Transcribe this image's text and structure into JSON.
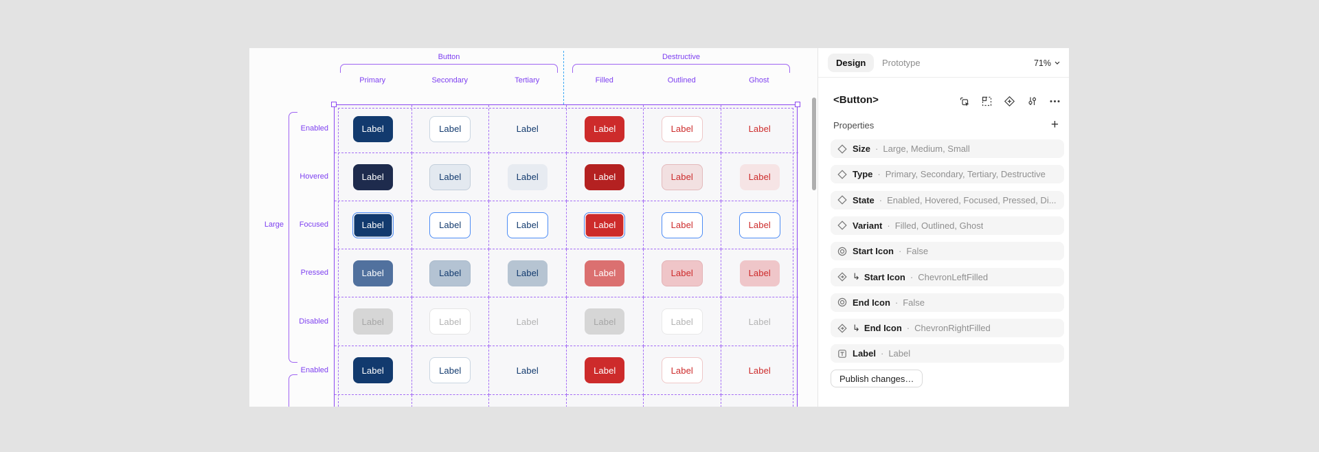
{
  "canvas": {
    "groups": [
      {
        "label": "Button",
        "columns": [
          {
            "label": "Primary",
            "key": "primary"
          },
          {
            "label": "Secondary",
            "key": "secondary"
          },
          {
            "label": "Tertiary",
            "key": "tertiary"
          }
        ]
      },
      {
        "label": "Destructive",
        "columns": [
          {
            "label": "Filled",
            "key": "destructive-filled"
          },
          {
            "label": "Outlined",
            "key": "destructive-outlined"
          },
          {
            "label": "Ghost",
            "key": "destructive-ghost"
          }
        ]
      }
    ],
    "size_group_label": "Large",
    "rows": [
      {
        "label": "Enabled",
        "state": "enabled"
      },
      {
        "label": "Hovered",
        "state": "hovered"
      },
      {
        "label": "Focused",
        "state": "focused"
      },
      {
        "label": "Pressed",
        "state": "pressed"
      },
      {
        "label": "Disabled",
        "state": "disabled"
      },
      {
        "label": "Enabled",
        "state": "enabled"
      }
    ],
    "button_label": "Label",
    "styles": {
      "primary": {
        "enabled": {
          "bg": "#123A6E",
          "fg": "#FFFFFF"
        },
        "hovered": {
          "bg": "#1E2B4D",
          "fg": "#FFFFFF"
        },
        "focused": {
          "bg": "#123A6E",
          "fg": "#FFFFFF",
          "ring": "#4B8BF5"
        },
        "pressed": {
          "bg": "#51719E",
          "fg": "#FFFFFF"
        },
        "disabled": {
          "bg": "#D6D6D6",
          "fg": "#A6A6A6"
        }
      },
      "secondary": {
        "enabled": {
          "bg": "#FFFFFF",
          "fg": "#123A6E",
          "border": "#C9D5E1"
        },
        "hovered": {
          "bg": "#E3E9F0",
          "fg": "#123A6E",
          "border": "#C2CEDA"
        },
        "focused": {
          "bg": "#FFFFFF",
          "fg": "#123A6E",
          "ring": "#4B8BF5"
        },
        "pressed": {
          "bg": "#B4C3D3",
          "fg": "#123A6E",
          "border": "#A9BACB"
        },
        "disabled": {
          "bg": "#FFFFFF",
          "fg": "#B3B3B3",
          "border": "#E4E4E4"
        }
      },
      "tertiary": {
        "enabled": {
          "fg": "#123A6E"
        },
        "hovered": {
          "bg": "#E7EBF1",
          "fg": "#123A6E"
        },
        "focused": {
          "bg": "#FFFFFF",
          "fg": "#123A6E",
          "ring": "#4B8BF5"
        },
        "pressed": {
          "bg": "#B6C4D2",
          "fg": "#123A6E"
        },
        "disabled": {
          "fg": "#B3B3B3"
        }
      },
      "destructive-filled": {
        "enabled": {
          "bg": "#CD2B2B",
          "fg": "#FFFFFF"
        },
        "hovered": {
          "bg": "#B42121",
          "fg": "#FFFFFF"
        },
        "focused": {
          "bg": "#CD2B2B",
          "fg": "#FFFFFF",
          "ring": "#4B8BF5"
        },
        "pressed": {
          "bg": "#DB7070",
          "fg": "#FFFFFF"
        },
        "disabled": {
          "bg": "#D6D6D6",
          "fg": "#A6A6A6"
        }
      },
      "destructive-outlined": {
        "enabled": {
          "bg": "#FFFFFF",
          "fg": "#CD2B2B",
          "border": "#EFC7C7"
        },
        "hovered": {
          "bg": "#F2E0E1",
          "fg": "#CD2B2B",
          "border": "#E3B9BB"
        },
        "focused": {
          "bg": "#FFFFFF",
          "fg": "#CD2B2B",
          "ring": "#4B8BF5"
        },
        "pressed": {
          "bg": "#EFC5C8",
          "fg": "#CD2B2B",
          "border": "#E3B2B6"
        },
        "disabled": {
          "bg": "#FFFFFF",
          "fg": "#B3B3B3",
          "border": "#E8E8E8"
        }
      },
      "destructive-ghost": {
        "enabled": {
          "fg": "#CD2B2B"
        },
        "hovered": {
          "bg": "#F6E4E5",
          "fg": "#CD2B2B"
        },
        "focused": {
          "bg": "#FFFFFF",
          "fg": "#CD2B2B",
          "ring": "#4B8BF5"
        },
        "pressed": {
          "bg": "#EFC6C9",
          "fg": "#CD2B2B"
        },
        "disabled": {
          "fg": "#B3B3B3"
        }
      }
    },
    "colors": {
      "selection_purple": "#8B46F0",
      "dashed_purple": "#A46CF5",
      "label_purple": "#7D3FF0",
      "guide_blue": "#3BA7F5"
    }
  },
  "panel": {
    "tabs": [
      {
        "label": "Design",
        "active": true
      },
      {
        "label": "Prototype",
        "active": false
      }
    ],
    "zoom": "71%",
    "title": "<Button>",
    "header_icons": [
      "multi-select-icon",
      "variants-grid-icon",
      "add-variant-icon",
      "adjust-icon",
      "more-icon"
    ],
    "section_title": "Properties",
    "properties": [
      {
        "icon": "variant-diamond-icon",
        "nested": false,
        "name": "Size",
        "value": "Large, Medium, Small"
      },
      {
        "icon": "variant-diamond-icon",
        "nested": false,
        "name": "Type",
        "value": "Primary, Secondary, Tertiary, Destructive"
      },
      {
        "icon": "variant-diamond-icon",
        "nested": false,
        "name": "State",
        "value": "Enabled, Hovered, Focused, Pressed, Di..."
      },
      {
        "icon": "variant-diamond-icon",
        "nested": false,
        "name": "Variant",
        "value": "Filled, Outlined, Ghost"
      },
      {
        "icon": "boolean-icon",
        "nested": false,
        "name": "Start Icon",
        "value": "False"
      },
      {
        "icon": "instance-swap-icon",
        "nested": true,
        "name": "Start Icon",
        "value": "ChevronLeftFilled"
      },
      {
        "icon": "boolean-icon",
        "nested": false,
        "name": "End Icon",
        "value": "False"
      },
      {
        "icon": "instance-swap-icon",
        "nested": true,
        "name": "End Icon",
        "value": "ChevronRightFilled"
      },
      {
        "icon": "text-prop-icon",
        "nested": false,
        "name": "Label",
        "value": "Label"
      }
    ],
    "publish_button": "Publish changes…"
  }
}
